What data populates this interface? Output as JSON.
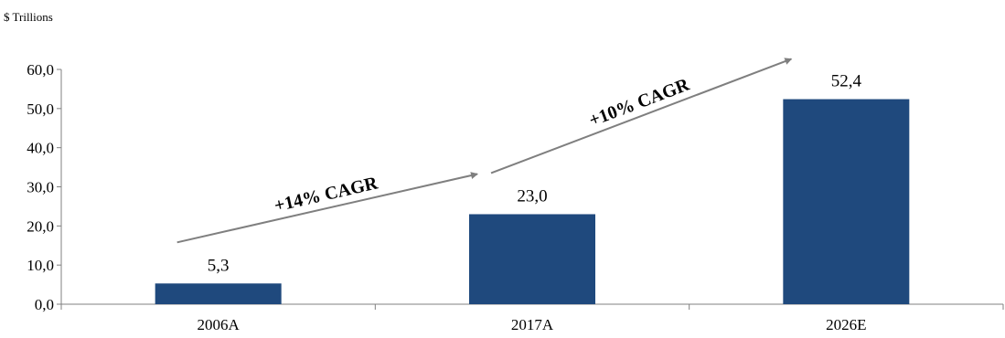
{
  "chart_data": {
    "type": "bar",
    "unit_label": "$ Trillions",
    "categories": [
      "2006A",
      "2017A",
      "2026E"
    ],
    "values": [
      5.3,
      23.0,
      52.4
    ],
    "data_labels": [
      "5,3",
      "23,0",
      "52,4"
    ],
    "ylim": [
      0,
      60
    ],
    "yticks": [
      "0,0",
      "10,0",
      "20,0",
      "30,0",
      "40,0",
      "50,0",
      "60,0"
    ],
    "bar_color": "#1f497d",
    "annotations": [
      {
        "text": "+14% CAGR",
        "from": "2006A",
        "to": "2017A"
      },
      {
        "text": "+10% CAGR",
        "from": "2017A",
        "to": "2026E"
      }
    ],
    "grid": false,
    "legend": "none"
  }
}
